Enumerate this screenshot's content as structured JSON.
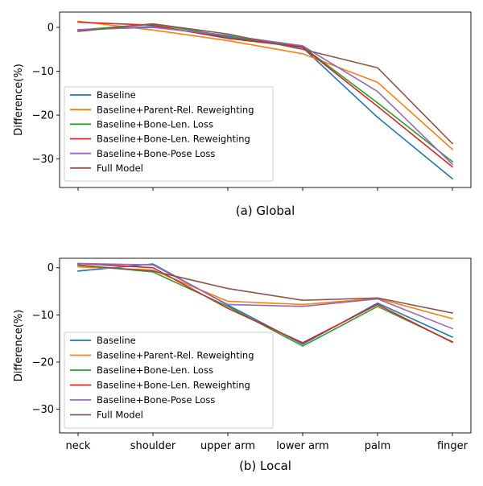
{
  "chart_data": [
    {
      "type": "line",
      "caption": "(a) Global",
      "xlabel": "",
      "ylabel": "Difference(%)",
      "ylim": [
        -36.5,
        3.5
      ],
      "yticks": [
        0,
        -10,
        -20,
        -30
      ],
      "ytick_labels": [
        "0",
        "−10",
        "−20",
        "−30"
      ],
      "categories": [
        "neck",
        "shoulder",
        "upper arm",
        "lower arm",
        "palm",
        "finger"
      ],
      "show_tick_labels": false,
      "grid": false,
      "legend_position": "lower-left",
      "series": [
        {
          "name": "Baseline",
          "color": "#1f77b4",
          "values": [
            -0.6,
            0.2,
            -2.2,
            -4.6,
            -20.5,
            -34.5
          ]
        },
        {
          "name": "Baseline+Parent-Rel. Reweighting",
          "color": "#ff7f0e",
          "values": [
            1.4,
            -0.6,
            -3.0,
            -6.0,
            -12.5,
            -27.8
          ]
        },
        {
          "name": "Baseline+Bone-Len. Loss",
          "color": "#2ca02c",
          "values": [
            -0.6,
            0.8,
            -2.0,
            -4.4,
            -17.2,
            -30.6
          ]
        },
        {
          "name": "Baseline+Bone-Len. Reweighting",
          "color": "#d62728",
          "values": [
            1.2,
            0.5,
            -2.5,
            -4.5,
            -18.0,
            -31.8
          ]
        },
        {
          "name": "Baseline+Bone-Pose Loss",
          "color": "#9467bd",
          "values": [
            -0.5,
            0.0,
            -1.8,
            -4.2,
            -14.6,
            -31.2
          ]
        },
        {
          "name": "Full Model",
          "color": "#8c564b",
          "values": [
            -0.9,
            0.8,
            -1.5,
            -5.0,
            -9.2,
            -26.5
          ]
        }
      ]
    },
    {
      "type": "line",
      "caption": "(b) Local",
      "xlabel": "",
      "ylabel": "Difference(%)",
      "ylim": [
        -35,
        2
      ],
      "yticks": [
        0,
        -10,
        -20,
        -30
      ],
      "ytick_labels": [
        "0",
        "−10",
        "−20",
        "−30"
      ],
      "categories": [
        "neck",
        "shoulder",
        "upper arm",
        "lower arm",
        "palm",
        "finger"
      ],
      "show_tick_labels": true,
      "grid": false,
      "legend_position": "lower-left",
      "series": [
        {
          "name": "Baseline",
          "color": "#1f77b4",
          "values": [
            -0.7,
            0.8,
            -7.9,
            -16.2,
            -7.5,
            -14.7
          ]
        },
        {
          "name": "Baseline+Parent-Rel. Reweighting",
          "color": "#ff7f0e",
          "values": [
            0.2,
            -0.5,
            -7.1,
            -7.8,
            -6.5,
            -10.8
          ]
        },
        {
          "name": "Baseline+Bone-Len. Loss",
          "color": "#2ca02c",
          "values": [
            0.6,
            -0.9,
            -8.2,
            -16.6,
            -8.2,
            -15.7
          ]
        },
        {
          "name": "Baseline+Bone-Len. Reweighting",
          "color": "#d62728",
          "values": [
            0.9,
            0.0,
            -8.6,
            -15.9,
            -7.8,
            -15.8
          ]
        },
        {
          "name": "Baseline+Bone-Pose Loss",
          "color": "#9467bd",
          "values": [
            0.9,
            0.6,
            -7.8,
            -8.2,
            -6.6,
            -12.9
          ]
        },
        {
          "name": "Full Model",
          "color": "#8c564b",
          "values": [
            0.5,
            -0.7,
            -4.4,
            -6.9,
            -6.4,
            -9.6
          ]
        }
      ]
    }
  ]
}
